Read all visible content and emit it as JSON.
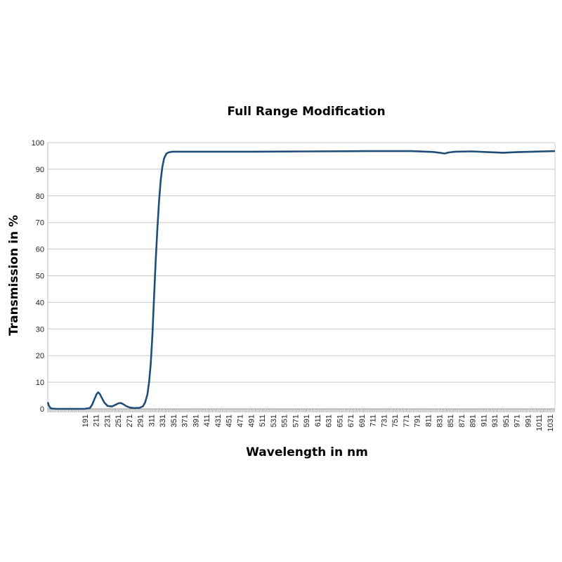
{
  "chart_data": {
    "type": "line",
    "title": "Full Range Modification",
    "xlabel": "Wavelength in nm",
    "ylabel": "Transmission in %",
    "xlim": [
      124,
      1040
    ],
    "ylim": [
      0,
      100
    ],
    "yticks": [
      0,
      10,
      20,
      30,
      40,
      50,
      60,
      70,
      80,
      90,
      100
    ],
    "xticks": [
      191,
      211,
      231,
      251,
      271,
      291,
      311,
      331,
      351,
      371,
      391,
      411,
      431,
      451,
      471,
      491,
      511,
      531,
      551,
      571,
      591,
      611,
      631,
      651,
      671,
      691,
      711,
      731,
      751,
      771,
      791,
      811,
      831,
      851,
      871,
      891,
      911,
      931,
      951,
      971,
      991,
      1011,
      1031
    ],
    "grid": "horizontal",
    "line_color": "#1f4e79",
    "series": [
      {
        "x": [
          124,
          126,
          128,
          131,
          140,
          160,
          190,
          200,
          204,
          208,
          212,
          215,
          218,
          222,
          226,
          232,
          240,
          246,
          252,
          256,
          260,
          266,
          272,
          280,
          290,
          296,
          300,
          304,
          307,
          310,
          313,
          316,
          319,
          322,
          325,
          328,
          331,
          334,
          338,
          342,
          346,
          350,
          360,
          400,
          500,
          600,
          700,
          780,
          820,
          835,
          841,
          848,
          860,
          890,
          920,
          947,
          970,
          1000,
          1040
        ],
        "y": [
          2.5,
          1.2,
          0.5,
          0.1,
          0,
          0,
          0,
          0.3,
          1.5,
          3.5,
          5.5,
          6.2,
          5.6,
          4.0,
          2.4,
          1.1,
          0.9,
          1.5,
          2.1,
          2.2,
          1.8,
          1.0,
          0.5,
          0.3,
          0.4,
          1.0,
          2.5,
          5.5,
          10,
          17,
          28,
          42,
          56,
          68,
          78,
          86,
          91,
          94,
          95.8,
          96.3,
          96.5,
          96.6,
          96.6,
          96.6,
          96.6,
          96.7,
          96.8,
          96.8,
          96.5,
          96.1,
          95.9,
          96.3,
          96.6,
          96.7,
          96.4,
          96.2,
          96.4,
          96.6,
          96.8
        ]
      }
    ]
  }
}
